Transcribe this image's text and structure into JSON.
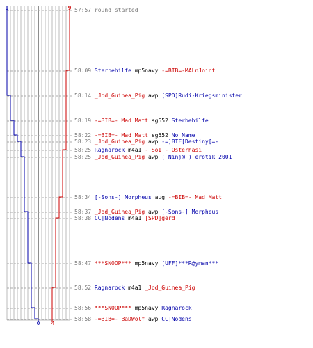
{
  "scale": {
    "blue_top_label": "9",
    "red_top_label": "9",
    "blue_bottom_label": "0",
    "red_bottom_label": "4"
  },
  "colors": {
    "blue": "#0000aa",
    "red": "#cc0000",
    "gray_text": "#777777",
    "grid": "#bbbbbb",
    "dashed": "#aaaaaa",
    "axis_dark": "#444444"
  },
  "events": [
    {
      "time": "57:57",
      "killer": "",
      "weapon": "",
      "victim": "",
      "note": "round started",
      "killer_team": "gray",
      "victim_team": "gray"
    },
    {
      "time": "58:09",
      "killer": "Sterbehilfe",
      "weapon": "mp5navy",
      "victim": "-=BIB=-MALnJoint",
      "killer_team": "blue",
      "victim_team": "red"
    },
    {
      "time": "58:14",
      "killer": "_Jod_Guinea_Pig",
      "weapon": "awp",
      "victim": "[SPD]Rudi-Kriegsminister",
      "killer_team": "red",
      "victim_team": "blue"
    },
    {
      "time": "58:19",
      "killer": "-=BIB=- Mad Matt",
      "weapon": "sg552",
      "victim": "Sterbehilfe",
      "killer_team": "red",
      "victim_team": "blue"
    },
    {
      "time": "58:22",
      "killer": "-=BIB=- Mad Matt",
      "weapon": "sg552",
      "victim": "No Name",
      "killer_team": "red",
      "victim_team": "blue"
    },
    {
      "time": "58:23",
      "killer": "_Jod_Guinea_Pig",
      "weapon": "awp",
      "victim": "-=]BTF[Destiny[=-",
      "killer_team": "red",
      "victim_team": "blue"
    },
    {
      "time": "58:25",
      "killer": "Ragnarock",
      "weapon": "m4a1",
      "victim": "-|SoI|- Osterhasi",
      "killer_team": "blue",
      "victim_team": "red"
    },
    {
      "time": "58:25",
      "killer": "_Jod_Guinea_Pig",
      "weapon": "awp",
      "victim": "( Ninj@ ) erotik 2001",
      "killer_team": "red",
      "victim_team": "blue"
    },
    {
      "time": "58:34",
      "killer": "[-Sons-] Morpheus",
      "weapon": "aug",
      "victim": "-=BIB=- Mad Matt",
      "killer_team": "blue",
      "victim_team": "red"
    },
    {
      "time": "58:37",
      "killer": "_Jod_Guinea_Pig",
      "weapon": "awp",
      "victim": "[-Sons-] Morpheus",
      "killer_team": "red",
      "victim_team": "blue"
    },
    {
      "time": "58:38",
      "killer": "CC|Nodens",
      "weapon": "m4a1",
      "victim": "[SPD]gerd",
      "killer_team": "blue",
      "victim_team": "red"
    },
    {
      "time": "58:47",
      "killer": "***SNOOP***",
      "weapon": "mp5navy",
      "victim": "[UFF]***R@yman***",
      "killer_team": "red",
      "victim_team": "blue"
    },
    {
      "time": "58:52",
      "killer": "Ragnarock",
      "weapon": "m4a1",
      "victim": "_Jod_Guinea_Pig",
      "killer_team": "blue",
      "victim_team": "red"
    },
    {
      "time": "58:56",
      "killer": "***SNOOP***",
      "weapon": "mp5navy",
      "victim": "Ragnarock",
      "killer_team": "red",
      "victim_team": "blue"
    },
    {
      "time": "58:58",
      "killer": "-=BIB=- BaDWolf",
      "weapon": "awp",
      "victim": "CC|Nodens",
      "killer_team": "red",
      "victim_team": "blue"
    }
  ]
}
